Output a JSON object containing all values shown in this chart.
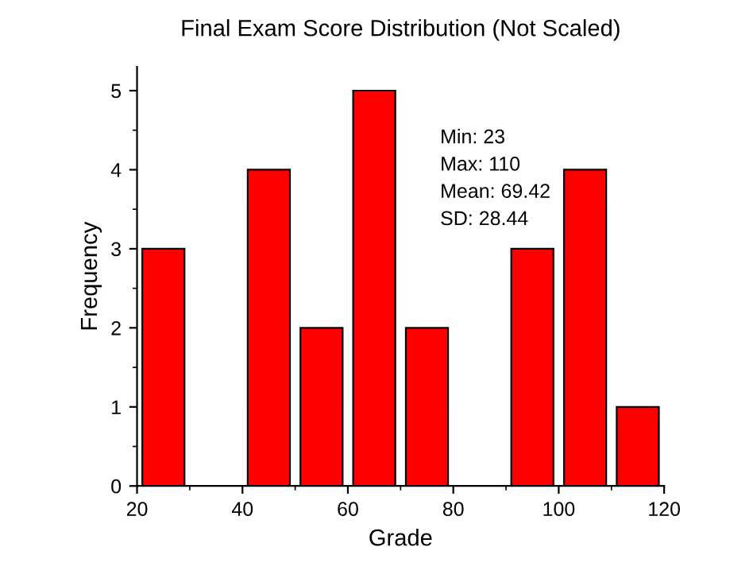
{
  "chart_data": {
    "type": "histogram",
    "title": "Final Exam Score Distribution (Not Scaled)",
    "xlabel": "Grade",
    "ylabel": "Frequency",
    "bins": [
      20,
      30,
      40,
      50,
      60,
      70,
      80,
      90,
      100,
      110,
      120
    ],
    "values": [
      3,
      0,
      4,
      2,
      5,
      2,
      0,
      3,
      4,
      1
    ],
    "color": "#ff0000",
    "xlim": [
      20,
      120
    ],
    "xticks": [
      20,
      40,
      60,
      80,
      100,
      120
    ],
    "ylim": [
      0,
      5.3
    ],
    "yticks": [
      0,
      1,
      2,
      3,
      4,
      5
    ],
    "grid": false,
    "annotations": [
      "Min: 23",
      "Max: 110",
      "Mean: 69.42",
      "SD: 28.44"
    ]
  }
}
